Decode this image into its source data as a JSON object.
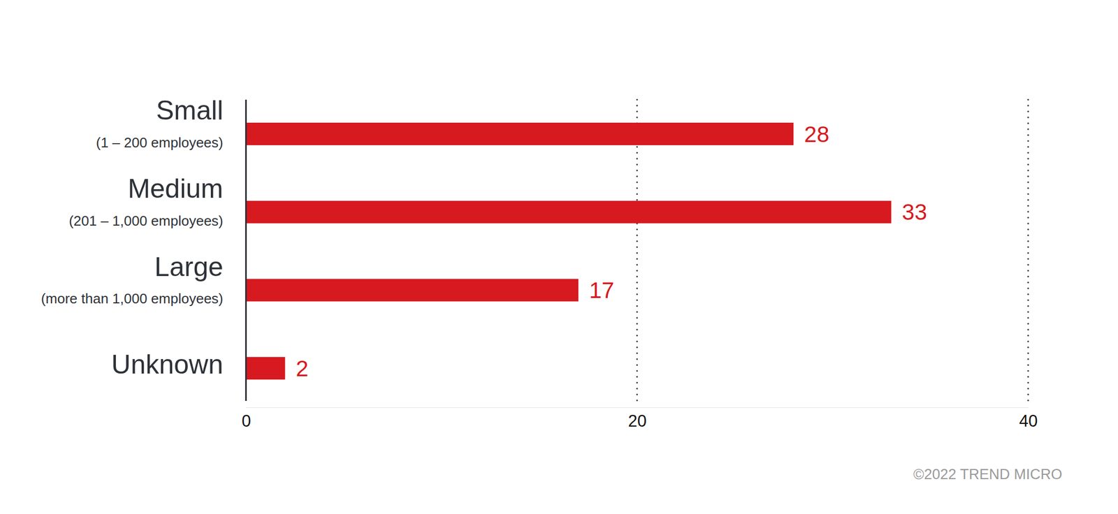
{
  "chart_data": {
    "type": "bar",
    "orientation": "horizontal",
    "categories": [
      "Small",
      "Medium",
      "Large",
      "Unknown"
    ],
    "category_details": [
      "(1 – 200 employees)",
      "(201 – 1,000 employees)",
      "(more than 1,000 employees)",
      null
    ],
    "values": [
      28,
      33,
      17,
      2
    ],
    "color": "#d71920",
    "xlim": [
      0,
      40
    ],
    "xticks": [
      0,
      20,
      40
    ],
    "grid": true,
    "data_labels": true,
    "note": "©2022 TREND MICRO"
  }
}
